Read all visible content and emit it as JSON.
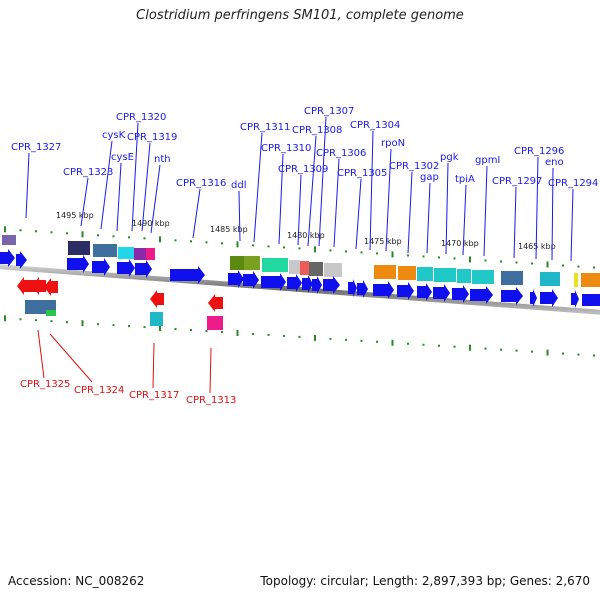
{
  "title": "Clostridium perfringens SM101, complete genome",
  "footer": {
    "accession": "Accession: NC_008262",
    "summary": "Topology: circular; Length: 2,897,393 bp; Genes: 2,670"
  },
  "colors": {
    "forward_arrow": "#1010ee",
    "reverse_arrow": "#ee1111",
    "forward_label": "#1a1aee",
    "reverse_label": "#dd1111",
    "backbone": "#7a7a7a",
    "ruler_tick": "#2a8a2a"
  },
  "kbp_labels": [
    "1495 kbp",
    "1490 kbp",
    "1485 kbp",
    "1480 kbp",
    "1475 kbp",
    "1470 kbp",
    "1465 kbp"
  ],
  "forward_genes": [
    "CPR_1327",
    "CPR_1323",
    "cysK",
    "cysE",
    "CPR_1320",
    "CPR_1319",
    "nth",
    "CPR_1316",
    "ddl",
    "CPR_1311",
    "CPR_1310",
    "CPR_1309",
    "CPR_1308",
    "CPR_1307",
    "CPR_1306",
    "CPR_1305",
    "CPR_1304",
    "rpoN",
    "CPR_1302",
    "gap",
    "pgk",
    "tpiA",
    "gpmI",
    "CPR_1297",
    "CPR_1296",
    "eno",
    "CPR_1294"
  ],
  "reverse_genes": [
    "CPR_1325",
    "CPR_1324",
    "CPR_1317",
    "CPR_1313"
  ]
}
